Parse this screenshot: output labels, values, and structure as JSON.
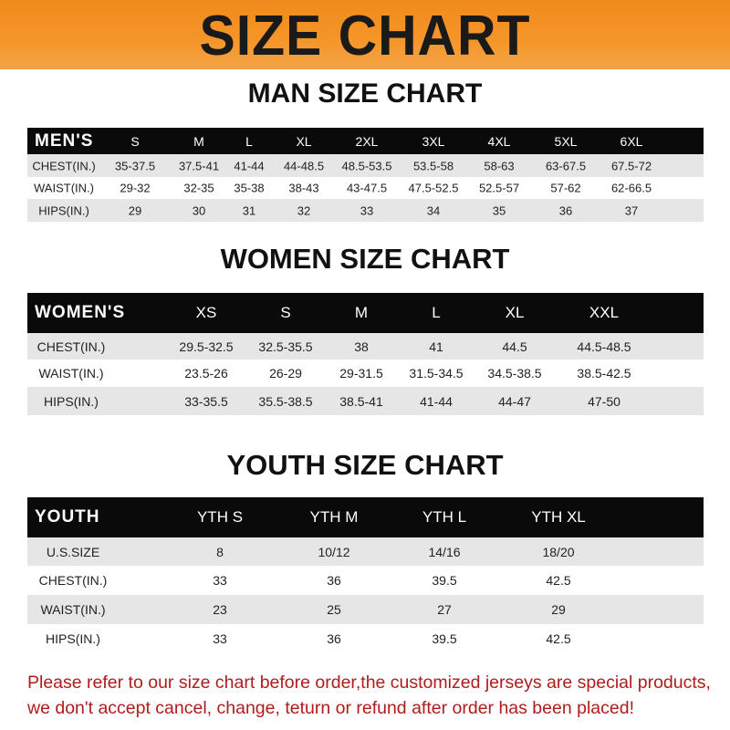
{
  "banner": {
    "title": "SIZE CHART",
    "color": "#f5962a"
  },
  "men": {
    "title": "MAN SIZE CHART",
    "header": [
      "MEN'S",
      "S",
      "M",
      "L",
      "XL",
      "2XL",
      "3XL",
      "4XL",
      "5XL",
      "6XL"
    ],
    "rows": [
      [
        "CHEST(IN.)",
        "35-37.5",
        "37.5-41",
        "41-44",
        "44-48.5",
        "48.5-53.5",
        "53.5-58",
        "58-63",
        "63-67.5",
        "67.5-72"
      ],
      [
        "WAIST(IN.)",
        "29-32",
        "32-35",
        "35-38",
        "38-43",
        "43-47.5",
        "47.5-52.5",
        "52.5-57",
        "57-62",
        "62-66.5"
      ],
      [
        "HIPS(IN.)",
        "29",
        "30",
        "31",
        "32",
        "33",
        "34",
        "35",
        "36",
        "37"
      ]
    ]
  },
  "women": {
    "title": "WOMEN SIZE CHART",
    "header": [
      "WOMEN'S",
      "XS",
      "S",
      "M",
      "L",
      "XL",
      "XXL"
    ],
    "rows": [
      [
        "CHEST(IN.)",
        "29.5-32.5",
        "32.5-35.5",
        "38",
        "41",
        "44.5",
        "44.5-48.5"
      ],
      [
        "WAIST(IN.)",
        "23.5-26",
        "26-29",
        "29-31.5",
        "31.5-34.5",
        "34.5-38.5",
        "38.5-42.5"
      ],
      [
        "HIPS(IN.)",
        "33-35.5",
        "35.5-38.5",
        "38.5-41",
        "41-44",
        "44-47",
        "47-50"
      ]
    ]
  },
  "youth": {
    "title": "YOUTH SIZE CHART",
    "header": [
      "YOUTH",
      "YTH S",
      "YTH M",
      "YTH L",
      "YTH XL"
    ],
    "rows": [
      [
        "U.S.SIZE",
        "8",
        "10/12",
        "14/16",
        "18/20"
      ],
      [
        "CHEST(IN.)",
        "33",
        "36",
        "39.5",
        "42.5"
      ],
      [
        "WAIST(IN.)",
        "23",
        "25",
        "27",
        "29"
      ],
      [
        "HIPS(IN.)",
        "33",
        "36",
        "39.5",
        "42.5"
      ]
    ]
  },
  "note": {
    "line1": "Please refer to our size chart before order,the customized jerseys are special products,",
    "line2": "we don't accept cancel, change, teturn or refund after order has been placed!",
    "color": "#b01c1c"
  }
}
